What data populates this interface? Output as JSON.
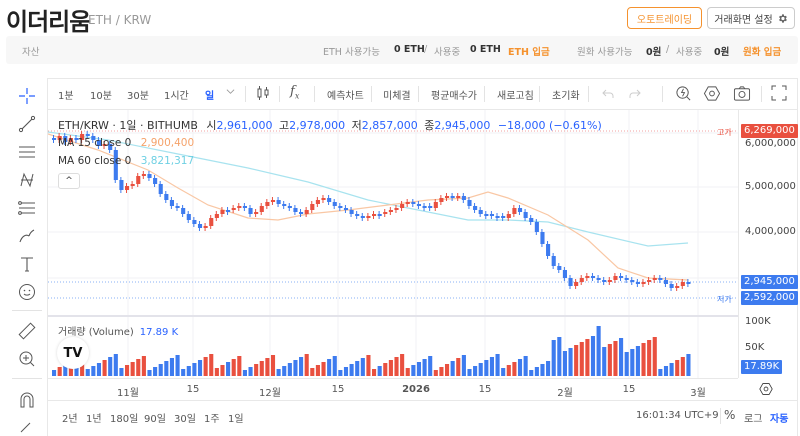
{
  "header": {
    "title": "이더리움",
    "pair": "ETH / KRW",
    "auto_trading_button": "오토트레이딩",
    "settings_button": "거래화면 설정"
  },
  "asset_bar": {
    "label": "자산",
    "eth_available_label": "ETH 사용가능",
    "eth_available_value": "0 ETH",
    "slash": "/",
    "eth_in_use_label": "사용중",
    "eth_in_use_value": "0 ETH",
    "eth_deposit_link": "ETH 입금",
    "krw_available_label": "원화 사용가능",
    "krw_available_value": "0원",
    "krw_in_use_label": "사용중",
    "krw_in_use_value": "0원",
    "krw_deposit_link": "원화 입금"
  },
  "toolbar": {
    "intervals": [
      "1분",
      "10분",
      "30분",
      "1시간",
      "일"
    ],
    "active_interval": "일",
    "buttons": [
      "예측차트",
      "미체결",
      "평균매수가",
      "새로고침",
      "초기화"
    ]
  },
  "chart_legend": {
    "symbol": "ETH/KRW · 1일 · BITHUMB",
    "open_label": "시",
    "open": "2,961,000",
    "high_label": "고",
    "high": "2,978,000",
    "low_label": "저",
    "low": "2,857,000",
    "close_label": "종",
    "close": "2,945,000",
    "change": "−18,000 (−0.61%)",
    "ma15_label": "MA 15 close 0",
    "ma15_value": "2,900,400",
    "ma60_label": "MA 60 close 0",
    "ma60_value": "3,821,317",
    "collapse": "^"
  },
  "price_axis": {
    "high_tag": "고가",
    "high_badge": "6,269,000",
    "ticks": [
      "6,000,000",
      "5,000,000",
      "4,000,000"
    ],
    "last_badge": "2,945,000",
    "low_tag": "저가",
    "low_badge": "2,592,000",
    "volume_ticks": [
      "100K",
      "50K"
    ],
    "volume_badge": "17.89K"
  },
  "volume_legend": {
    "label": "거래량 (Volume)",
    "value": "17.89 K"
  },
  "time_axis": [
    "11월",
    "15",
    "12월",
    "15",
    "2026",
    "15",
    "2월",
    "15",
    "3월"
  ],
  "bottom_bar": {
    "ranges": [
      "2년",
      "1년",
      "180일",
      "90일",
      "30일",
      "1주",
      "1일"
    ],
    "clock": "16:01:34 UTC+9",
    "percent": "%",
    "log": "로그",
    "auto": "자동"
  },
  "colors": {
    "up": "#e9503f",
    "down": "#3d7bef",
    "ma15": "#f9b98c",
    "ma60": "#a8e3ef",
    "accent": "#f5922e",
    "active": "#2962ff"
  },
  "chart_data": {
    "type": "candlestick",
    "title": "ETH/KRW · 1일 · BITHUMB",
    "x_ticks": [
      "11월",
      "15",
      "12월",
      "15",
      "2026",
      "15",
      "2월",
      "15",
      "3월"
    ],
    "y_ticks": [
      4000000,
      5000000,
      6000000
    ],
    "ylim": [
      2400000,
      6400000
    ],
    "high": 6269000,
    "low": 2592000,
    "last": {
      "open": 2961000,
      "high": 2978000,
      "low": 2857000,
      "close": 2945000,
      "change": -18000,
      "change_pct": -0.61
    },
    "ma15_last": 2900400,
    "ma60_last": 3821317,
    "volume_last": 17890,
    "volume_ticks": [
      "50K",
      "100K"
    ]
  }
}
